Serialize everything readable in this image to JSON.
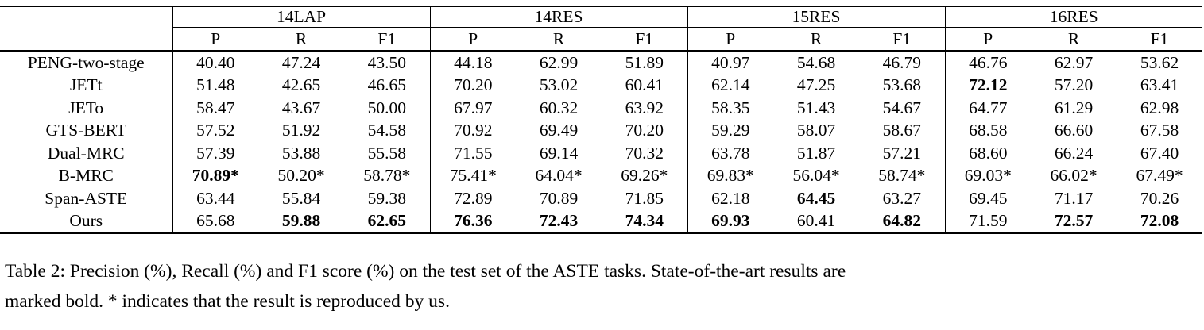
{
  "table": {
    "corner_label": "",
    "groups": [
      {
        "label": "14LAP"
      },
      {
        "label": "14RES"
      },
      {
        "label": "15RES"
      },
      {
        "label": "16RES"
      }
    ],
    "subheaders": [
      "P",
      "R",
      "F1"
    ],
    "rows": [
      {
        "method": "PENG-two-stage",
        "cells": [
          {
            "text": "40.40",
            "bold": false
          },
          {
            "text": "47.24",
            "bold": false
          },
          {
            "text": "43.50",
            "bold": false
          },
          {
            "text": "44.18",
            "bold": false
          },
          {
            "text": "62.99",
            "bold": false
          },
          {
            "text": "51.89",
            "bold": false
          },
          {
            "text": "40.97",
            "bold": false
          },
          {
            "text": "54.68",
            "bold": false
          },
          {
            "text": "46.79",
            "bold": false
          },
          {
            "text": "46.76",
            "bold": false
          },
          {
            "text": "62.97",
            "bold": false
          },
          {
            "text": "53.62",
            "bold": false
          }
        ]
      },
      {
        "method": "JETt",
        "cells": [
          {
            "text": "51.48",
            "bold": false
          },
          {
            "text": "42.65",
            "bold": false
          },
          {
            "text": "46.65",
            "bold": false
          },
          {
            "text": "70.20",
            "bold": false
          },
          {
            "text": "53.02",
            "bold": false
          },
          {
            "text": "60.41",
            "bold": false
          },
          {
            "text": "62.14",
            "bold": false
          },
          {
            "text": "47.25",
            "bold": false
          },
          {
            "text": "53.68",
            "bold": false
          },
          {
            "text": "72.12",
            "bold": true
          },
          {
            "text": "57.20",
            "bold": false
          },
          {
            "text": "63.41",
            "bold": false
          }
        ]
      },
      {
        "method": "JETo",
        "cells": [
          {
            "text": "58.47",
            "bold": false
          },
          {
            "text": "43.67",
            "bold": false
          },
          {
            "text": "50.00",
            "bold": false
          },
          {
            "text": "67.97",
            "bold": false
          },
          {
            "text": "60.32",
            "bold": false
          },
          {
            "text": "63.92",
            "bold": false
          },
          {
            "text": "58.35",
            "bold": false
          },
          {
            "text": "51.43",
            "bold": false
          },
          {
            "text": "54.67",
            "bold": false
          },
          {
            "text": "64.77",
            "bold": false
          },
          {
            "text": "61.29",
            "bold": false
          },
          {
            "text": "62.98",
            "bold": false
          }
        ]
      },
      {
        "method": "GTS-BERT",
        "cells": [
          {
            "text": "57.52",
            "bold": false
          },
          {
            "text": "51.92",
            "bold": false
          },
          {
            "text": "54.58",
            "bold": false
          },
          {
            "text": "70.92",
            "bold": false
          },
          {
            "text": "69.49",
            "bold": false
          },
          {
            "text": "70.20",
            "bold": false
          },
          {
            "text": "59.29",
            "bold": false
          },
          {
            "text": "58.07",
            "bold": false
          },
          {
            "text": "58.67",
            "bold": false
          },
          {
            "text": "68.58",
            "bold": false
          },
          {
            "text": "66.60",
            "bold": false
          },
          {
            "text": "67.58",
            "bold": false
          }
        ]
      },
      {
        "method": "Dual-MRC",
        "cells": [
          {
            "text": "57.39",
            "bold": false
          },
          {
            "text": "53.88",
            "bold": false
          },
          {
            "text": "55.58",
            "bold": false
          },
          {
            "text": "71.55",
            "bold": false
          },
          {
            "text": "69.14",
            "bold": false
          },
          {
            "text": "70.32",
            "bold": false
          },
          {
            "text": "63.78",
            "bold": false
          },
          {
            "text": "51.87",
            "bold": false
          },
          {
            "text": "57.21",
            "bold": false
          },
          {
            "text": "68.60",
            "bold": false
          },
          {
            "text": "66.24",
            "bold": false
          },
          {
            "text": "67.40",
            "bold": false
          }
        ]
      },
      {
        "method": "B-MRC",
        "cells": [
          {
            "text": "70.89*",
            "bold": true
          },
          {
            "text": "50.20*",
            "bold": false
          },
          {
            "text": "58.78*",
            "bold": false
          },
          {
            "text": "75.41*",
            "bold": false
          },
          {
            "text": "64.04*",
            "bold": false
          },
          {
            "text": "69.26*",
            "bold": false
          },
          {
            "text": "69.83*",
            "bold": false
          },
          {
            "text": "56.04*",
            "bold": false
          },
          {
            "text": "58.74*",
            "bold": false
          },
          {
            "text": "69.03*",
            "bold": false
          },
          {
            "text": "66.02*",
            "bold": false
          },
          {
            "text": "67.49*",
            "bold": false
          }
        ]
      },
      {
        "method": "Span-ASTE",
        "cells": [
          {
            "text": "63.44",
            "bold": false
          },
          {
            "text": "55.84",
            "bold": false
          },
          {
            "text": "59.38",
            "bold": false
          },
          {
            "text": "72.89",
            "bold": false
          },
          {
            "text": "70.89",
            "bold": false
          },
          {
            "text": "71.85",
            "bold": false
          },
          {
            "text": "62.18",
            "bold": false
          },
          {
            "text": "64.45",
            "bold": true
          },
          {
            "text": "63.27",
            "bold": false
          },
          {
            "text": "69.45",
            "bold": false
          },
          {
            "text": "71.17",
            "bold": false
          },
          {
            "text": "70.26",
            "bold": false
          }
        ]
      },
      {
        "method": "Ours",
        "cells": [
          {
            "text": "65.68",
            "bold": false
          },
          {
            "text": "59.88",
            "bold": true
          },
          {
            "text": "62.65",
            "bold": true
          },
          {
            "text": "76.36",
            "bold": true
          },
          {
            "text": "72.43",
            "bold": true
          },
          {
            "text": "74.34",
            "bold": true
          },
          {
            "text": "69.93",
            "bold": true
          },
          {
            "text": "60.41",
            "bold": false
          },
          {
            "text": "64.82",
            "bold": true
          },
          {
            "text": "71.59",
            "bold": false
          },
          {
            "text": "72.57",
            "bold": true
          },
          {
            "text": "72.08",
            "bold": true
          }
        ]
      }
    ]
  },
  "caption": {
    "lines": [
      "Table 2: Precision (%), Recall (%) and F1 score (%) on the test set of the ASTE tasks. State-of-the-art results are",
      "marked bold. * indicates that the result is reproduced by us."
    ]
  }
}
